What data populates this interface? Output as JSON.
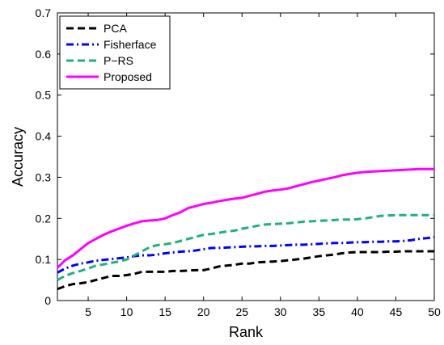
{
  "chart_data": {
    "type": "line",
    "xlabel": "Rank",
    "ylabel": "Accuracy",
    "xlim": [
      1,
      50
    ],
    "ylim": [
      0,
      0.7
    ],
    "xticks": [
      5,
      10,
      15,
      20,
      25,
      30,
      35,
      40,
      45,
      50
    ],
    "yticks": [
      0,
      0.1,
      0.2,
      0.3,
      0.4,
      0.5,
      0.6,
      0.7
    ],
    "ytick_labels": [
      "0",
      "0.1",
      "0.2",
      "0.3",
      "0.4",
      "0.5",
      "0.6",
      "0.7"
    ],
    "grid": false,
    "legend_position": "top-left",
    "x": [
      1,
      2,
      3,
      4,
      5,
      6,
      7,
      8,
      9,
      10,
      11,
      12,
      13,
      14,
      15,
      16,
      17,
      18,
      19,
      20,
      21,
      22,
      23,
      24,
      25,
      26,
      27,
      28,
      29,
      30,
      31,
      32,
      33,
      34,
      35,
      36,
      37,
      38,
      39,
      40,
      41,
      42,
      43,
      44,
      45,
      46,
      47,
      48,
      49,
      50
    ],
    "series": [
      {
        "name": "PCA",
        "color": "#000000",
        "dash": "dash",
        "values": [
          0.028,
          0.035,
          0.04,
          0.042,
          0.045,
          0.05,
          0.055,
          0.06,
          0.06,
          0.062,
          0.065,
          0.07,
          0.07,
          0.07,
          0.07,
          0.072,
          0.072,
          0.073,
          0.074,
          0.074,
          0.078,
          0.083,
          0.085,
          0.087,
          0.09,
          0.09,
          0.093,
          0.094,
          0.095,
          0.096,
          0.098,
          0.1,
          0.102,
          0.105,
          0.108,
          0.11,
          0.112,
          0.115,
          0.117,
          0.118,
          0.118,
          0.118,
          0.118,
          0.119,
          0.119,
          0.12,
          0.12,
          0.12,
          0.12,
          0.12
        ]
      },
      {
        "name": "Fisherface",
        "color": "#0000ff",
        "dash": "dashdot",
        "values": [
          0.068,
          0.078,
          0.085,
          0.09,
          0.093,
          0.097,
          0.099,
          0.101,
          0.103,
          0.105,
          0.108,
          0.11,
          0.11,
          0.112,
          0.115,
          0.117,
          0.119,
          0.12,
          0.122,
          0.125,
          0.128,
          0.128,
          0.129,
          0.13,
          0.131,
          0.132,
          0.132,
          0.133,
          0.133,
          0.134,
          0.135,
          0.136,
          0.136,
          0.137,
          0.138,
          0.139,
          0.14,
          0.14,
          0.141,
          0.142,
          0.142,
          0.143,
          0.143,
          0.144,
          0.144,
          0.145,
          0.147,
          0.15,
          0.152,
          0.154
        ]
      },
      {
        "name": "P−RS",
        "color": "#20b080",
        "dash": "dash",
        "values": [
          0.05,
          0.06,
          0.067,
          0.072,
          0.078,
          0.085,
          0.088,
          0.092,
          0.095,
          0.1,
          0.11,
          0.12,
          0.13,
          0.135,
          0.137,
          0.14,
          0.145,
          0.15,
          0.155,
          0.16,
          0.162,
          0.165,
          0.168,
          0.17,
          0.175,
          0.178,
          0.182,
          0.185,
          0.186,
          0.187,
          0.188,
          0.19,
          0.192,
          0.193,
          0.194,
          0.195,
          0.196,
          0.197,
          0.197,
          0.198,
          0.2,
          0.203,
          0.206,
          0.207,
          0.208,
          0.208,
          0.208,
          0.208,
          0.208,
          0.208
        ]
      },
      {
        "name": "Proposed",
        "color": "#ff00ff",
        "dash": "solid",
        "values": [
          0.08,
          0.098,
          0.11,
          0.125,
          0.14,
          0.15,
          0.16,
          0.168,
          0.175,
          0.182,
          0.188,
          0.193,
          0.195,
          0.196,
          0.2,
          0.208,
          0.215,
          0.225,
          0.23,
          0.235,
          0.238,
          0.242,
          0.245,
          0.248,
          0.25,
          0.255,
          0.26,
          0.265,
          0.268,
          0.27,
          0.273,
          0.278,
          0.283,
          0.288,
          0.292,
          0.296,
          0.3,
          0.305,
          0.308,
          0.311,
          0.313,
          0.314,
          0.315,
          0.316,
          0.317,
          0.318,
          0.319,
          0.32,
          0.32,
          0.32
        ]
      }
    ]
  }
}
